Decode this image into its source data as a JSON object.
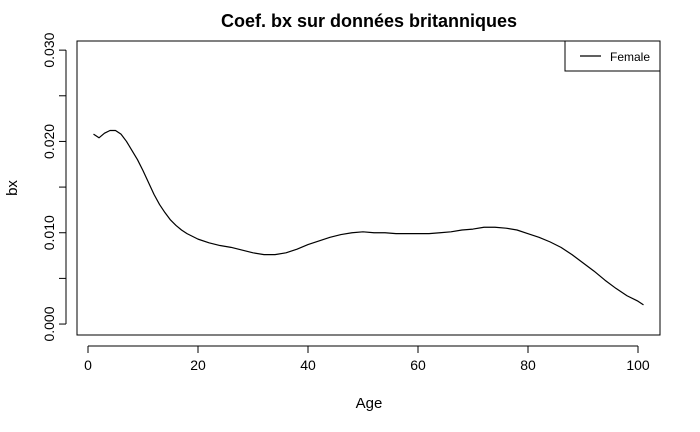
{
  "chart_data": {
    "type": "line",
    "title": "Coef. bx sur données britanniques",
    "xlabel": "Age",
    "ylabel": "bx",
    "xlim": [
      -2,
      104
    ],
    "ylim": [
      -0.0012,
      0.031
    ],
    "x_ticks": [
      0,
      20,
      40,
      60,
      80,
      100
    ],
    "x_tick_labels": [
      "0",
      "20",
      "40",
      "60",
      "80",
      "100"
    ],
    "y_ticks": [
      0.0,
      0.005,
      0.01,
      0.015,
      0.02,
      0.025,
      0.03
    ],
    "y_tick_labels": [
      "0.000",
      "",
      "0.010",
      "",
      "0.020",
      "",
      "0.030"
    ],
    "grid": false,
    "legend_position": "top-right",
    "series": [
      {
        "name": "Female",
        "color": "#000000",
        "x": [
          1,
          2,
          3,
          4,
          5,
          6,
          7,
          8,
          9,
          10,
          11,
          12,
          13,
          14,
          15,
          16,
          17,
          18,
          19,
          20,
          22,
          24,
          26,
          28,
          30,
          32,
          34,
          36,
          38,
          40,
          42,
          44,
          46,
          48,
          50,
          52,
          54,
          56,
          58,
          60,
          62,
          64,
          66,
          68,
          70,
          72,
          74,
          76,
          78,
          80,
          82,
          84,
          86,
          88,
          90,
          92,
          94,
          96,
          98,
          100,
          101
        ],
        "y": [
          0.0208,
          0.0204,
          0.0209,
          0.0212,
          0.0212,
          0.0208,
          0.02,
          0.019,
          0.018,
          0.0168,
          0.0155,
          0.0142,
          0.0131,
          0.0122,
          0.0114,
          0.0108,
          0.0103,
          0.0099,
          0.0096,
          0.0093,
          0.0089,
          0.0086,
          0.0084,
          0.0081,
          0.0078,
          0.0076,
          0.0076,
          0.0078,
          0.0082,
          0.0087,
          0.0091,
          0.0095,
          0.0098,
          0.01,
          0.0101,
          0.01,
          0.01,
          0.0099,
          0.0099,
          0.0099,
          0.0099,
          0.01,
          0.0101,
          0.0103,
          0.0104,
          0.0106,
          0.0106,
          0.0105,
          0.0103,
          0.0099,
          0.0095,
          0.009,
          0.0084,
          0.0076,
          0.0067,
          0.0058,
          0.0048,
          0.0039,
          0.0031,
          0.0025,
          0.0021
        ]
      }
    ]
  }
}
